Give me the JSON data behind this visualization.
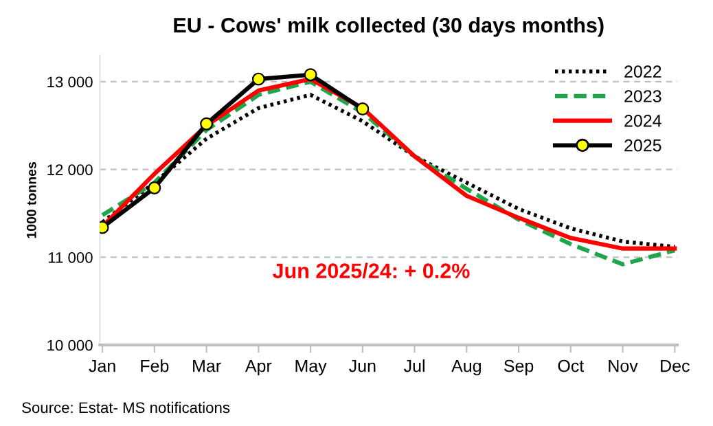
{
  "chart_data": {
    "type": "line",
    "title": "EU - Cows' milk collected (30 days months)",
    "ylabel": "1000 tonnes",
    "categories": [
      "Jan",
      "Feb",
      "Mar",
      "Apr",
      "May",
      "Jun",
      "Jul",
      "Aug",
      "Sep",
      "Oct",
      "Nov",
      "Dec"
    ],
    "series": [
      {
        "name": "2022",
        "color": "#000000",
        "line_style": "dotted",
        "marker": "none",
        "values": [
          11400,
          11850,
          12350,
          12700,
          12850,
          12550,
          12150,
          11850,
          11550,
          11330,
          11180,
          11120
        ]
      },
      {
        "name": "2023",
        "color": "#1fa64a",
        "line_style": "dashed",
        "marker": "none",
        "values": [
          11480,
          11850,
          12450,
          12850,
          13000,
          12650,
          12150,
          11780,
          11430,
          11150,
          10920,
          11080
        ]
      },
      {
        "name": "2024",
        "color": "#ff0000",
        "line_style": "solid",
        "marker": "none",
        "values": [
          11350,
          11950,
          12500,
          12900,
          13030,
          12700,
          12150,
          11700,
          11450,
          11220,
          11100,
          11100
        ]
      },
      {
        "name": "2025",
        "color": "#000000",
        "line_style": "solid",
        "marker": "circle",
        "values": [
          11340,
          11790,
          12520,
          13030,
          13080,
          12690,
          null,
          null,
          null,
          null,
          null,
          null
        ]
      }
    ],
    "ylim": [
      10000,
      13300
    ],
    "yticks": [
      {
        "value": 10000,
        "label": "10 000"
      },
      {
        "value": 11000,
        "label": "11 000"
      },
      {
        "value": 12000,
        "label": "12 000"
      },
      {
        "value": 13000,
        "label": "13 000"
      }
    ],
    "grid": "y",
    "legend": "top right",
    "annotations": [
      "Jun 2025/24: + 0.2%",
      "Source: Estat- MS notifications"
    ]
  }
}
